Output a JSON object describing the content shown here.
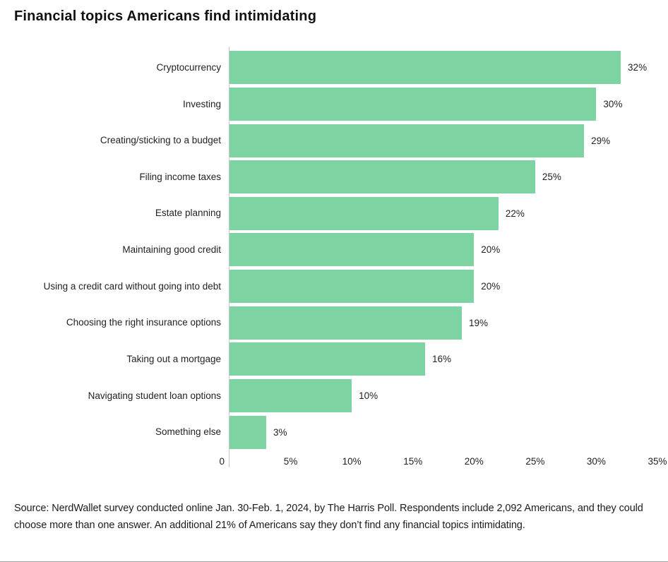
{
  "page": {
    "title": "Financial topics Americans find intimidating"
  },
  "chart_data": {
    "type": "bar",
    "orientation": "horizontal",
    "title": "Financial topics Americans find intimidating",
    "categories": [
      "Cryptocurrency",
      "Investing",
      "Creating/sticking to a budget",
      "Filing income taxes",
      "Estate planning",
      "Maintaining good credit",
      "Using a credit card without going into debt",
      "Choosing the right insurance options",
      "Taking out a mortgage",
      "Navigating student loan options",
      "Something else"
    ],
    "values": [
      32,
      30,
      29,
      25,
      22,
      20,
      20,
      19,
      16,
      10,
      3
    ],
    "value_labels": [
      "32%",
      "30%",
      "29%",
      "25%",
      "22%",
      "20%",
      "20%",
      "19%",
      "16%",
      "10%",
      "3%"
    ],
    "xlabel": "",
    "ylabel": "",
    "xlim": [
      0,
      35
    ],
    "x_ticks": [
      {
        "value": 0,
        "label": "0"
      },
      {
        "value": 5,
        "label": "5%"
      },
      {
        "value": 10,
        "label": "10%"
      },
      {
        "value": 15,
        "label": "15%"
      },
      {
        "value": 20,
        "label": "20%"
      },
      {
        "value": 25,
        "label": "25%"
      },
      {
        "value": 30,
        "label": "30%"
      },
      {
        "value": 35,
        "label": "35%"
      }
    ],
    "grid": false,
    "legend": "none",
    "bar_color": "#7ed3a2",
    "axis_color": "#c9c9c9",
    "value_label_position": "right-of-bar"
  },
  "footer": {
    "source_text": "Source: NerdWallet survey conducted online Jan. 30-Feb. 1, 2024, by The Harris Poll. Respondents include 2,092 Americans, and they could choose more than one answer. An additional 21% of Americans say they don’t find any financial topics intimidating."
  }
}
